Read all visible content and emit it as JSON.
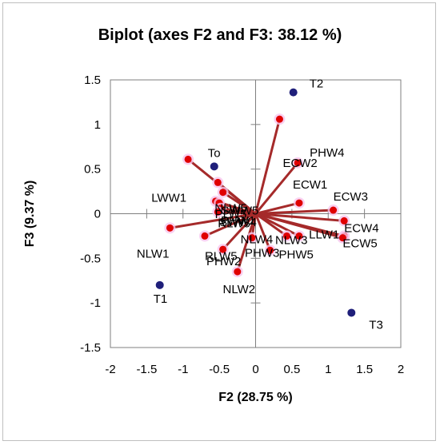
{
  "chart_data": {
    "type": "scatter",
    "title": "Biplot (axes F2 and F3: 38.12 %)",
    "xlabel": "F2 (28.75 %)",
    "ylabel": "F3 (9.37 %)",
    "xlim": [
      -2,
      2
    ],
    "ylim": [
      -1.5,
      1.5
    ],
    "xticks": [
      "-2",
      "-1.5",
      "-1",
      "-0.5",
      "0",
      "0.5",
      "1",
      "1.5",
      "2"
    ],
    "yticks": [
      "-1.5",
      "-1",
      "-0.5",
      "0",
      "0.5",
      "1",
      "1.5"
    ],
    "grid": false,
    "legend": "none",
    "colors": {
      "vector": "#a52a2a",
      "vector_tip": "#e00000",
      "observation": "#1f1f7a",
      "tip_glow": "#f7c6ee"
    },
    "observations": [
      {
        "label": "T2",
        "x": 0.52,
        "y": 1.36
      },
      {
        "label": "To",
        "x": -0.57,
        "y": 0.53
      },
      {
        "label": "T1",
        "x": -1.32,
        "y": -0.8
      },
      {
        "label": "T3",
        "x": 1.32,
        "y": -1.11
      }
    ],
    "variables": [
      {
        "label": "ECW2",
        "x": 0.33,
        "y": 1.06
      },
      {
        "label": "PHW4",
        "x": 0.58,
        "y": 0.57
      },
      {
        "label": "LWW1",
        "x": -0.93,
        "y": 0.61
      },
      {
        "label": "NLW5",
        "x": -0.52,
        "y": 0.35
      },
      {
        "label": "SWW5",
        "x": -0.45,
        "y": 0.24
      },
      {
        "label": "PLW5",
        "x": -0.55,
        "y": 0.14
      },
      {
        "label": "SWW4",
        "x": -0.5,
        "y": 0.12
      },
      {
        "label": "PHW1",
        "x": -0.48,
        "y": 0.06
      },
      {
        "label": "RLW5",
        "x": -0.52,
        "y": 0.02
      },
      {
        "label": "ECW1",
        "x": 0.6,
        "y": 0.12
      },
      {
        "label": "ECW3",
        "x": 1.07,
        "y": 0.04
      },
      {
        "label": "ECW4",
        "x": 1.22,
        "y": -0.08
      },
      {
        "label": "LLW1",
        "x": 1.22,
        "y": -0.25
      },
      {
        "label": "ECW5",
        "x": 1.2,
        "y": -0.27
      },
      {
        "label": "NLW3",
        "x": 0.6,
        "y": -0.25
      },
      {
        "label": "PHW5",
        "x": 0.43,
        "y": -0.25
      },
      {
        "label": "NLW1",
        "x": -1.18,
        "y": -0.16
      },
      {
        "label": "RLW5",
        "x": -0.7,
        "y": -0.25
      },
      {
        "label": "NLW4",
        "x": -0.05,
        "y": -0.27
      },
      {
        "label": "PHW3",
        "x": 0.2,
        "y": -0.41
      },
      {
        "label": "PHW2",
        "x": -0.45,
        "y": -0.4
      },
      {
        "label": "NLW2",
        "x": -0.25,
        "y": -0.65
      }
    ]
  }
}
